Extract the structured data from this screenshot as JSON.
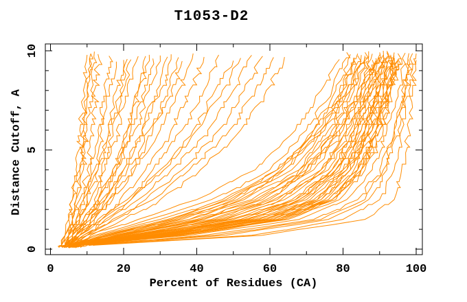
{
  "figure": {
    "kind": "static-plot-screenshot",
    "background": "#ffffff"
  },
  "chart_data": {
    "type": "line",
    "title": "T1053-D2",
    "xlabel": "Percent of Residues (CA)",
    "ylabel": "Distance Cutoff, A",
    "xlim": [
      0,
      100
    ],
    "ylim": [
      0,
      10
    ],
    "x_ticks_major": [
      0,
      20,
      40,
      60,
      80,
      100
    ],
    "x_tick_minor_step": 10,
    "y_ticks_major": [
      0,
      5,
      10
    ],
    "y_tick_minor_step": 1,
    "grid": false,
    "legend": "none",
    "line_color": "#ff8c00",
    "axis_color": "#000000",
    "background": "#ffffff",
    "n_models": 74,
    "series_format": "each series = percent of CA residues under each distance cutoff (A) listed in 'cutoffs'",
    "cutoffs": [
      0.2,
      0.7,
      1.5,
      2.5,
      4.0,
      6.0,
      8.0,
      9.8
    ],
    "series": [
      [
        3,
        4,
        5,
        6,
        7,
        8,
        9,
        10
      ],
      [
        3,
        4,
        5,
        6,
        8,
        9,
        10,
        11
      ],
      [
        4,
        5,
        6,
        7,
        8,
        9,
        10,
        11
      ],
      [
        3,
        4,
        6,
        7,
        9,
        10,
        11,
        12
      ],
      [
        4,
        5,
        6,
        8,
        10,
        11,
        12,
        13
      ],
      [
        4,
        5,
        7,
        9,
        11,
        13,
        15,
        16
      ],
      [
        3,
        5,
        7,
        9,
        12,
        14,
        16,
        18
      ],
      [
        4,
        5,
        8,
        10,
        13,
        16,
        18,
        20
      ],
      [
        4,
        6,
        8,
        11,
        14,
        17,
        20,
        22
      ],
      [
        5,
        6,
        9,
        12,
        15,
        18,
        21,
        24
      ],
      [
        4,
        6,
        10,
        13,
        17,
        21,
        24,
        26
      ],
      [
        5,
        7,
        10,
        14,
        18,
        22,
        26,
        28
      ],
      [
        4,
        6,
        9,
        13,
        18,
        23,
        27,
        30
      ],
      [
        5,
        7,
        11,
        15,
        20,
        25,
        29,
        32
      ],
      [
        4,
        6,
        8,
        10,
        13,
        16,
        19,
        21
      ],
      [
        5,
        7,
        10,
        13,
        17,
        21,
        24,
        27
      ],
      [
        4,
        7,
        11,
        15,
        20,
        25,
        30,
        33
      ],
      [
        5,
        8,
        12,
        16,
        21,
        27,
        32,
        35
      ],
      [
        4,
        7,
        11,
        16,
        22,
        28,
        33,
        36
      ],
      [
        5,
        8,
        12,
        17,
        23,
        30,
        35,
        39
      ],
      [
        4,
        7,
        13,
        19,
        26,
        33,
        38,
        42
      ],
      [
        5,
        8,
        14,
        21,
        28,
        36,
        42,
        46
      ],
      [
        6,
        9,
        15,
        22,
        30,
        39,
        45,
        50
      ],
      [
        5,
        8,
        14,
        22,
        31,
        40,
        47,
        52
      ],
      [
        6,
        10,
        16,
        24,
        33,
        43,
        50,
        55
      ],
      [
        5,
        9,
        17,
        26,
        36,
        46,
        53,
        58
      ],
      [
        6,
        10,
        18,
        28,
        38,
        49,
        56,
        61
      ],
      [
        7,
        11,
        20,
        30,
        41,
        52,
        59,
        64
      ],
      [
        4,
        10,
        24,
        40,
        56,
        67,
        74,
        79
      ],
      [
        5,
        12,
        27,
        44,
        60,
        70,
        77,
        81
      ],
      [
        4,
        13,
        30,
        47,
        62,
        72,
        78,
        82
      ],
      [
        5,
        14,
        32,
        49,
        64,
        74,
        80,
        83
      ],
      [
        6,
        15,
        34,
        51,
        66,
        75,
        81,
        84
      ],
      [
        4,
        16,
        36,
        53,
        68,
        77,
        82,
        85
      ],
      [
        5,
        17,
        38,
        55,
        69,
        78,
        83,
        86
      ],
      [
        6,
        18,
        40,
        57,
        71,
        79,
        84,
        87
      ],
      [
        5,
        19,
        42,
        59,
        72,
        80,
        85,
        87
      ],
      [
        6,
        20,
        44,
        61,
        74,
        81,
        85,
        88
      ],
      [
        5,
        21,
        46,
        62,
        75,
        82,
        86,
        89
      ],
      [
        7,
        22,
        47,
        64,
        76,
        83,
        87,
        90
      ],
      [
        5,
        23,
        49,
        66,
        77,
        83,
        87,
        90
      ],
      [
        6,
        24,
        50,
        67,
        78,
        84,
        88,
        91
      ],
      [
        7,
        25,
        52,
        68,
        79,
        85,
        89,
        91
      ],
      [
        6,
        26,
        53,
        70,
        80,
        86,
        89,
        92
      ],
      [
        5,
        27,
        55,
        71,
        80,
        86,
        90,
        92
      ],
      [
        7,
        28,
        56,
        72,
        81,
        87,
        90,
        93
      ],
      [
        6,
        29,
        57,
        73,
        82,
        87,
        91,
        93
      ],
      [
        8,
        30,
        58,
        74,
        82,
        88,
        91,
        94
      ],
      [
        6,
        31,
        60,
        75,
        83,
        88,
        92,
        94
      ],
      [
        7,
        32,
        61,
        76,
        84,
        89,
        92,
        94
      ],
      [
        8,
        33,
        62,
        76,
        84,
        89,
        92,
        95
      ],
      [
        6,
        34,
        63,
        77,
        85,
        90,
        93,
        95
      ],
      [
        7,
        35,
        64,
        78,
        85,
        90,
        93,
        95
      ],
      [
        8,
        36,
        65,
        79,
        86,
        91,
        93,
        96
      ],
      [
        7,
        30,
        59,
        73,
        81,
        86,
        89,
        91
      ],
      [
        6,
        22,
        45,
        60,
        70,
        78,
        84,
        88
      ],
      [
        5,
        18,
        38,
        52,
        64,
        74,
        80,
        84
      ],
      [
        8,
        28,
        54,
        68,
        78,
        85,
        90,
        93
      ],
      [
        6,
        25,
        52,
        67,
        77,
        83,
        87,
        90
      ],
      [
        7,
        20,
        42,
        58,
        70,
        79,
        85,
        89
      ],
      [
        5,
        15,
        33,
        48,
        62,
        73,
        81,
        86
      ],
      [
        9,
        34,
        63,
        77,
        84,
        89,
        92,
        95
      ],
      [
        5,
        16,
        35,
        50,
        63,
        72,
        79,
        83
      ],
      [
        6,
        19,
        41,
        56,
        68,
        76,
        82,
        86
      ],
      [
        7,
        24,
        48,
        63,
        74,
        81,
        86,
        89
      ],
      [
        6,
        27,
        54,
        69,
        78,
        84,
        88,
        91
      ],
      [
        8,
        31,
        59,
        74,
        82,
        87,
        90,
        92
      ],
      [
        7,
        33,
        62,
        77,
        85,
        89,
        92,
        94
      ],
      [
        8,
        38,
        68,
        81,
        88,
        92,
        95,
        97
      ],
      [
        9,
        42,
        72,
        84,
        90,
        94,
        96,
        98
      ],
      [
        10,
        48,
        76,
        87,
        92,
        95,
        97,
        99
      ],
      [
        8,
        45,
        74,
        86,
        91,
        94,
        97,
        98
      ],
      [
        11,
        55,
        80,
        90,
        94,
        96,
        98,
        100
      ],
      [
        12,
        58,
        86,
        94,
        96,
        98,
        99,
        100
      ]
    ]
  }
}
